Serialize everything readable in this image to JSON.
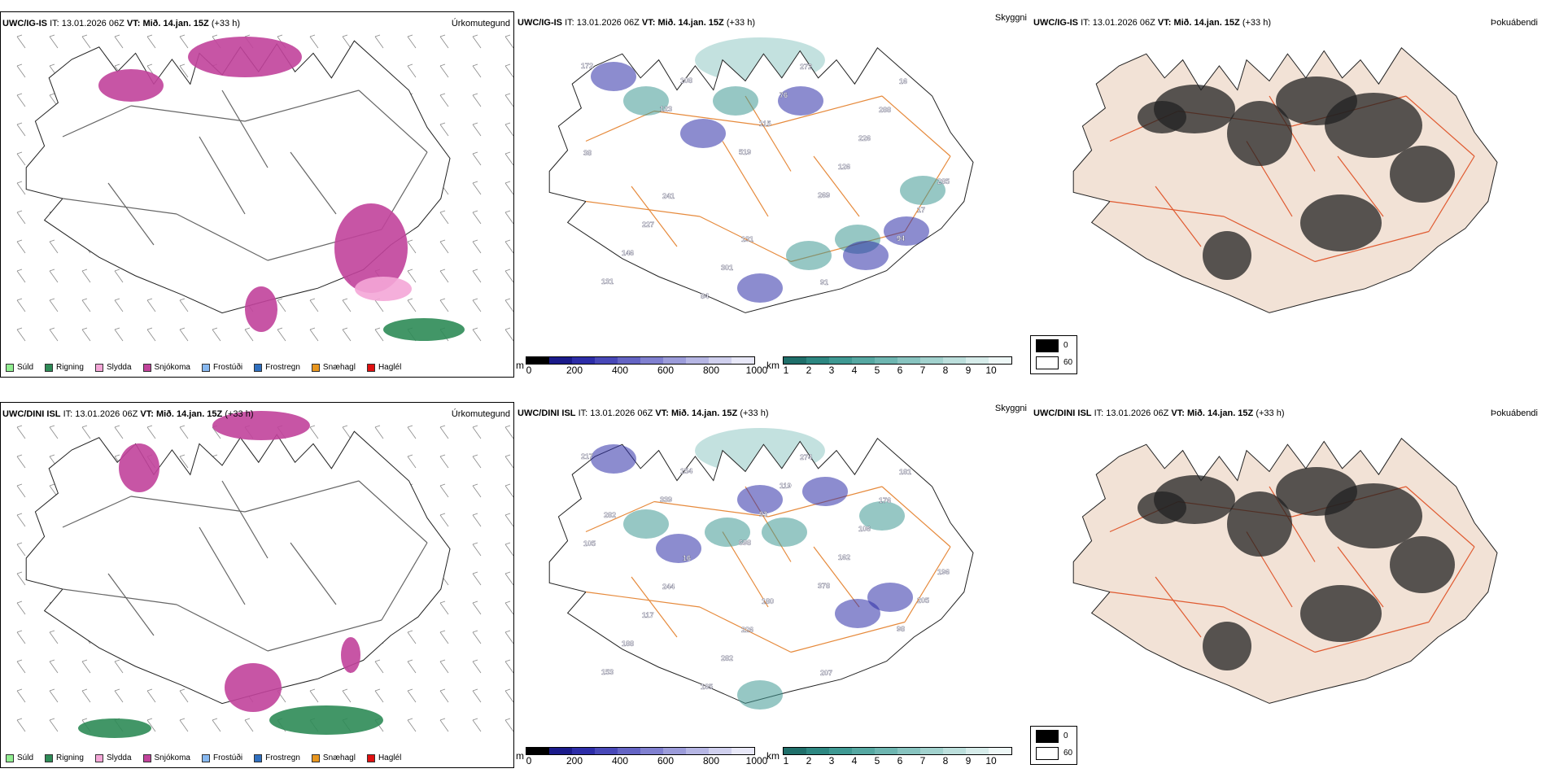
{
  "rows": [
    {
      "model": "UWC/IG-IS",
      "it_label": "IT:",
      "it_value": "13.01.2026 06Z",
      "vt_label": "VT:",
      "vt_value": "Mið. 14.jan. 15Z",
      "lead": "(+33 h)",
      "panels": [
        "Úrkomutegund",
        "Skyggni",
        "Þokuábendi"
      ],
      "labels": [
        "172",
        "123",
        "519",
        "269",
        "94",
        "131",
        "108",
        "115",
        "126",
        "17",
        "146",
        "84",
        "76",
        "226",
        "285",
        "227",
        "301",
        "272",
        "288",
        "38",
        "241",
        "131",
        "91",
        "16"
      ]
    },
    {
      "model": "UWC/DINI ISL",
      "it_label": "IT:",
      "it_value": "13.01.2026 06Z",
      "vt_label": "VT:",
      "vt_value": "Mið. 14.jan. 15Z",
      "lead": "(+33 h)",
      "panels": [
        "Úrkomutegund",
        "Skyggni",
        "Þokuábendi"
      ],
      "labels": [
        "217",
        "339",
        "698",
        "378",
        "98",
        "153",
        "154",
        "93",
        "162",
        "205",
        "188",
        "165",
        "119",
        "106",
        "196",
        "117",
        "282",
        "274",
        "176",
        "105",
        "244",
        "226",
        "207",
        "181",
        "282",
        "16",
        "180"
      ]
    }
  ],
  "precip_legend": [
    {
      "label": "Súld",
      "color": "#90ee90"
    },
    {
      "label": "Rigning",
      "color": "#2e8b57"
    },
    {
      "label": "Slydda",
      "color": "#f4a6d7"
    },
    {
      "label": "Snjókoma",
      "color": "#c1439b"
    },
    {
      "label": "Frostúði",
      "color": "#87b8f0"
    },
    {
      "label": "Frostregn",
      "color": "#2f6fbf"
    },
    {
      "label": "Snæhagl",
      "color": "#e8961e"
    },
    {
      "label": "Haglél",
      "color": "#e01010"
    }
  ],
  "vis_m_bar": {
    "unit": "m",
    "ticks": [
      "0",
      "200",
      "400",
      "600",
      "800",
      "1000"
    ],
    "colors": [
      "#000000",
      "#1a1a8a",
      "#2d2da8",
      "#4848b8",
      "#6464c4",
      "#8080d0",
      "#9c9cda",
      "#b6b6e4",
      "#d0d0ee",
      "#e8e8f8"
    ]
  },
  "vis_km_bar": {
    "unit": "km",
    "ticks": [
      "1",
      "2",
      "3",
      "4",
      "5",
      "6",
      "7",
      "8",
      "9",
      "10"
    ],
    "colors": [
      "#1f6f6a",
      "#2d8781",
      "#3f9993",
      "#56a8a2",
      "#6eb6b1",
      "#88c4c0",
      "#a2d2ce",
      "#bcdfdc",
      "#d6ecea",
      "#eef8f7"
    ]
  },
  "fog_legend": {
    "low": "0",
    "high": "60"
  }
}
